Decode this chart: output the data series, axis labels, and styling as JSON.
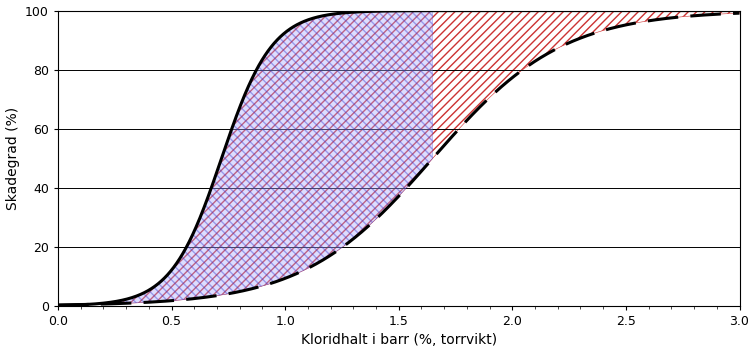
{
  "title": "",
  "xlabel": "Kloridhalt i barr (%, torrvikt)",
  "ylabel": "Skadegrad (%)",
  "xlim": [
    0.0,
    3.0
  ],
  "ylim": [
    0,
    100
  ],
  "xticks": [
    0.0,
    0.5,
    1.0,
    1.5,
    2.0,
    2.5,
    3.0
  ],
  "yticks": [
    0,
    20,
    40,
    60,
    80,
    100
  ],
  "solid_curve": {
    "L": 100,
    "k": 9.0,
    "x0": 0.72,
    "color": "#000000",
    "linewidth": 2.2
  },
  "dashed_curve": {
    "L": 100,
    "k": 3.5,
    "x0": 1.65,
    "color": "#000000",
    "linewidth": 2.2
  },
  "blue_region_end": 1.65,
  "red_region_start": 0.0,
  "blue_fill_color": "#aaaaff",
  "blue_hatch_color": "#3333cc",
  "red_fill_color": "#ffaaaa",
  "red_hatch_color": "#cc3333",
  "background_color": "#ffffff",
  "figure_width": 7.55,
  "figure_height": 3.53,
  "dpi": 100
}
